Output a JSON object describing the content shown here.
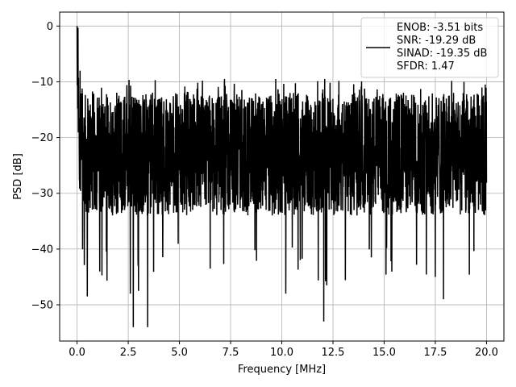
{
  "chart_data": {
    "type": "line",
    "title": "",
    "xlabel": "Frequency [MHz]",
    "ylabel": "PSD [dB]",
    "xlim": [
      -0.85,
      20.85
    ],
    "ylim": [
      -56.5,
      2.5
    ],
    "xticks": [
      0.0,
      2.5,
      5.0,
      7.5,
      10.0,
      12.5,
      15.0,
      17.5,
      20.0
    ],
    "xtick_labels": [
      "0.0",
      "2.5",
      "5.0",
      "7.5",
      "10.0",
      "12.5",
      "15.0",
      "17.5",
      "20.0"
    ],
    "yticks": [
      0,
      -10,
      -20,
      -30,
      -40,
      -50
    ],
    "ytick_labels": [
      "0",
      "−10",
      "−20",
      "−30",
      "−40",
      "−50"
    ],
    "grid": true,
    "legend_position": "top-right",
    "legend_entries": [
      "ENOB: -3.51 bits",
      "SNR: -19.29 dB",
      "SINAD: -19.35 dB",
      "SFDR: 1.47"
    ],
    "series_color": "#000000",
    "series": [
      {
        "description": "dense noisy PSD trace",
        "x_range": [
          0.0,
          20.0
        ],
        "peak": {
          "x": 0.0,
          "y": 0.0
        },
        "noise_floor_median": -22,
        "typical_upper": -12,
        "typical_lower": -34,
        "notable_peaks": [
          {
            "x": 0.05,
            "y": -0.3
          },
          {
            "x": 0.15,
            "y": -8
          },
          {
            "x": 7.2,
            "y": -9.5
          },
          {
            "x": 9.7,
            "y": -9.5
          },
          {
            "x": 12.1,
            "y": -9.5
          },
          {
            "x": 18.9,
            "y": -10.0
          }
        ],
        "notable_dips": [
          {
            "x": 0.5,
            "y": -48.5
          },
          {
            "x": 2.6,
            "y": -48.0
          },
          {
            "x": 2.75,
            "y": -54.0
          },
          {
            "x": 3.0,
            "y": -47.5
          },
          {
            "x": 3.45,
            "y": -54.0
          },
          {
            "x": 6.5,
            "y": -43.5
          },
          {
            "x": 10.2,
            "y": -48.0
          },
          {
            "x": 12.05,
            "y": -53.0
          },
          {
            "x": 12.2,
            "y": -46.5
          },
          {
            "x": 17.9,
            "y": -49.0
          },
          {
            "x": 17.5,
            "y": -45.0
          }
        ]
      }
    ]
  }
}
